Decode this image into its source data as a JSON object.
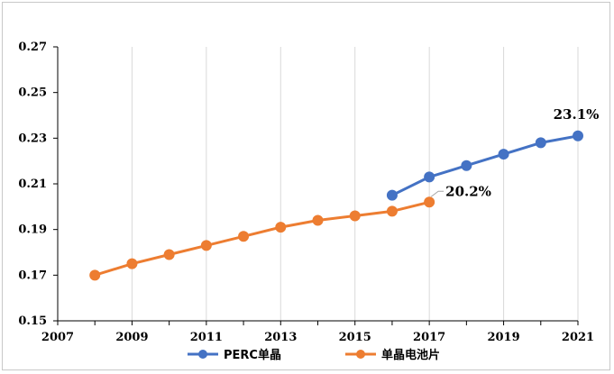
{
  "chart_data": {
    "type": "line",
    "title": "",
    "xlabel": "",
    "ylabel": "",
    "xlim": [
      2007,
      2021
    ],
    "ylim": [
      0.15,
      0.27
    ],
    "x_ticks": [
      "2007",
      "2009",
      "2011",
      "2013",
      "2015",
      "2017",
      "2019",
      "2021"
    ],
    "y_ticks": [
      "0.15",
      "0.17",
      "0.19",
      "0.21",
      "0.23",
      "0.25",
      "0.27"
    ],
    "grid": "vertical",
    "legend": "bottom",
    "series": [
      {
        "name": "PERC单晶",
        "color": "#4472c4",
        "x": [
          2016,
          2017,
          2018,
          2019,
          2020,
          2021
        ],
        "values": [
          0.205,
          0.213,
          0.218,
          0.223,
          0.228,
          0.231
        ]
      },
      {
        "name": "单晶电池片",
        "color": "#ed7d31",
        "x": [
          2008,
          2009,
          2010,
          2011,
          2012,
          2013,
          2014,
          2015,
          2016,
          2017
        ],
        "values": [
          0.17,
          0.175,
          0.179,
          0.183,
          0.187,
          0.191,
          0.194,
          0.196,
          0.198,
          0.202
        ]
      }
    ],
    "annotations": [
      {
        "text": "23.1%",
        "series": 0,
        "point": 5
      },
      {
        "text": "20.2%",
        "series": 1,
        "point": 9
      }
    ]
  }
}
